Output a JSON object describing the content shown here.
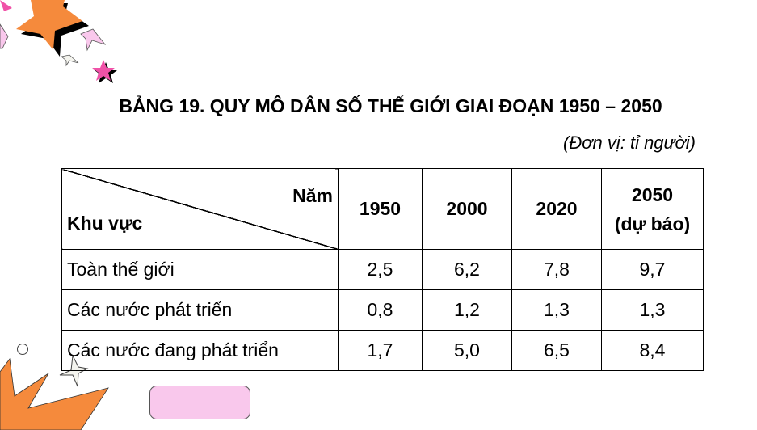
{
  "title": "BẢNG 19. QUY MÔ DÂN SỐ THẾ GIỚI GIAI ĐOẠN 1950 – 2050",
  "unit": "(Đơn vị: tỉ người)",
  "table": {
    "corner_top": "Năm",
    "corner_bottom": "Khu vực",
    "years": [
      "1950",
      "2000",
      "2020",
      "2050"
    ],
    "forecast_note": "(dự báo)",
    "rows": [
      {
        "region": "Toàn thế giới",
        "values": [
          "2,5",
          "6,2",
          "7,8",
          "9,7"
        ]
      },
      {
        "region": "Các nước phát triển",
        "values": [
          "0,8",
          "1,2",
          "1,3",
          "1,3"
        ]
      },
      {
        "region": "Các nước đang phát triển",
        "values": [
          "1,7",
          "5,0",
          "6,5",
          "8,4"
        ]
      }
    ]
  },
  "colors": {
    "orange_star": "#f58a3c",
    "pink_star": "#f052a8",
    "light_pink": "#f9c8ec"
  }
}
